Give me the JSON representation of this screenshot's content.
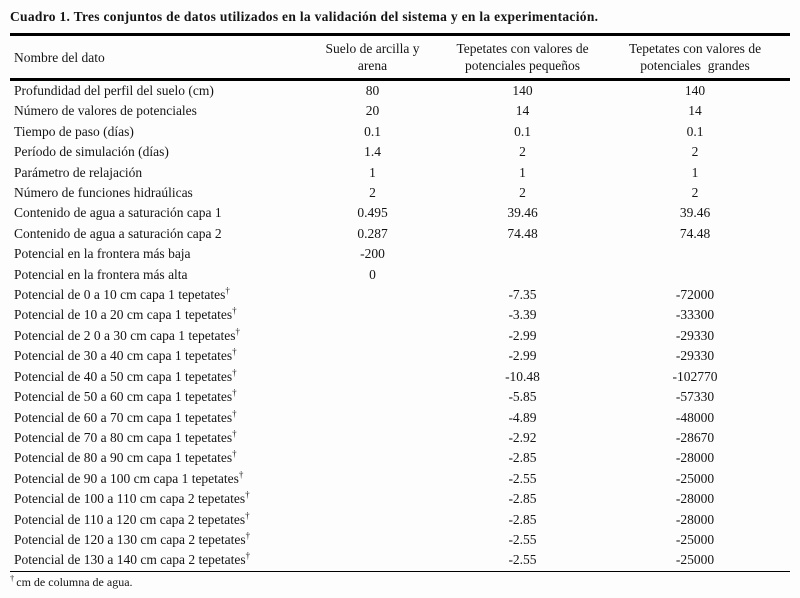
{
  "table": {
    "title": "Cuadro 1. Tres conjuntos de datos utilizados en la validación del sistema y en la experimentación.",
    "header": {
      "col1": "Nombre del dato",
      "col2_line1": "Suelo de arcilla y",
      "col2_line2": "arena",
      "col3_line1": "Tepetates con valores de",
      "col3_line2": "potenciales pequeños",
      "col4_line1": "Tepetates con valores de",
      "col4_line2": "potenciales  grandes"
    },
    "rows": [
      {
        "name": "Profundidad del perfil del suelo (cm)",
        "sup": "",
        "v1": "80",
        "v2": "140",
        "v3": "140"
      },
      {
        "name": "Número de valores de potenciales",
        "sup": "",
        "v1": "20",
        "v2": "14",
        "v3": "14"
      },
      {
        "name": "Tiempo de paso (días)",
        "sup": "",
        "v1": "0.1",
        "v2": "0.1",
        "v3": "0.1"
      },
      {
        "name": "Período de simulación (días)",
        "sup": "",
        "v1": "1.4",
        "v2": "2",
        "v3": "2"
      },
      {
        "name": "Parámetro de relajación",
        "sup": "",
        "v1": "1",
        "v2": "1",
        "v3": "1"
      },
      {
        "name": "Número de funciones hidraúlicas",
        "sup": "",
        "v1": "2",
        "v2": "2",
        "v3": "2"
      },
      {
        "name": "Contenido de agua a saturación capa 1",
        "sup": "",
        "v1": "0.495",
        "v2": "39.46",
        "v3": "39.46"
      },
      {
        "name": "Contenido de agua a saturación capa 2",
        "sup": "",
        "v1": "0.287",
        "v2": "74.48",
        "v3": "74.48"
      },
      {
        "name": "Potencial en la frontera más baja",
        "sup": "",
        "v1": "-200",
        "v2": "",
        "v3": ""
      },
      {
        "name": "Potencial en la frontera más alta",
        "sup": "",
        "v1": "0",
        "v2": "",
        "v3": ""
      },
      {
        "name": "Potencial de 0 a 10 cm capa 1 tepetates",
        "sup": "†",
        "v1": "",
        "v2": "-7.35",
        "v3": "-72000"
      },
      {
        "name": "Potencial de 10 a 20 cm capa 1 tepetates",
        "sup": "†",
        "v1": "",
        "v2": "-3.39",
        "v3": "-33300"
      },
      {
        "name": "Potencial de 2 0 a 30 cm capa 1 tepetates",
        "sup": "†",
        "v1": "",
        "v2": "-2.99",
        "v3": "-29330"
      },
      {
        "name": "Potencial de 30 a 40 cm capa 1 tepetates",
        "sup": "†",
        "v1": "",
        "v2": "-2.99",
        "v3": "-29330"
      },
      {
        "name": "Potencial de 40 a 50 cm capa 1 tepetates",
        "sup": "†",
        "v1": "",
        "v2": "-10.48",
        "v3": "-102770"
      },
      {
        "name": "Potencial de 50 a 60 cm capa 1 tepetates",
        "sup": "†",
        "v1": "",
        "v2": "-5.85",
        "v3": "-57330"
      },
      {
        "name": "Potencial de 60 a 70 cm capa 1 tepetates",
        "sup": "†",
        "v1": "",
        "v2": "-4.89",
        "v3": "-48000"
      },
      {
        "name": "Potencial de 70 a 80 cm capa 1 tepetates",
        "sup": "†",
        "v1": "",
        "v2": "-2.92",
        "v3": "-28670"
      },
      {
        "name": "Potencial de 80 a 90 cm capa 1 tepetates",
        "sup": "†",
        "v1": "",
        "v2": "-2.85",
        "v3": "-28000"
      },
      {
        "name": "Potencial de 90 a 100 cm capa 1 tepetates",
        "sup": "†",
        "v1": "",
        "v2": "-2.55",
        "v3": "-25000"
      },
      {
        "name": "Potencial de 100 a 110 cm capa 2 tepetates",
        "sup": "†",
        "v1": "",
        "v2": "-2.85",
        "v3": "-28000"
      },
      {
        "name": "Potencial de 110 a 120 cm capa 2 tepetates",
        "sup": "†",
        "v1": "",
        "v2": "-2.85",
        "v3": "-28000"
      },
      {
        "name": "Potencial de 120 a 130 cm capa 2 tepetates",
        "sup": "†",
        "v1": "",
        "v2": "-2.55",
        "v3": "-25000"
      },
      {
        "name": "Potencial de 130 a 140 cm capa 2 tepetates",
        "sup": "†",
        "v1": "",
        "v2": "-2.55",
        "v3": "-25000"
      }
    ],
    "footnote": {
      "symbol": "†",
      "text": "cm de columna de agua."
    }
  }
}
